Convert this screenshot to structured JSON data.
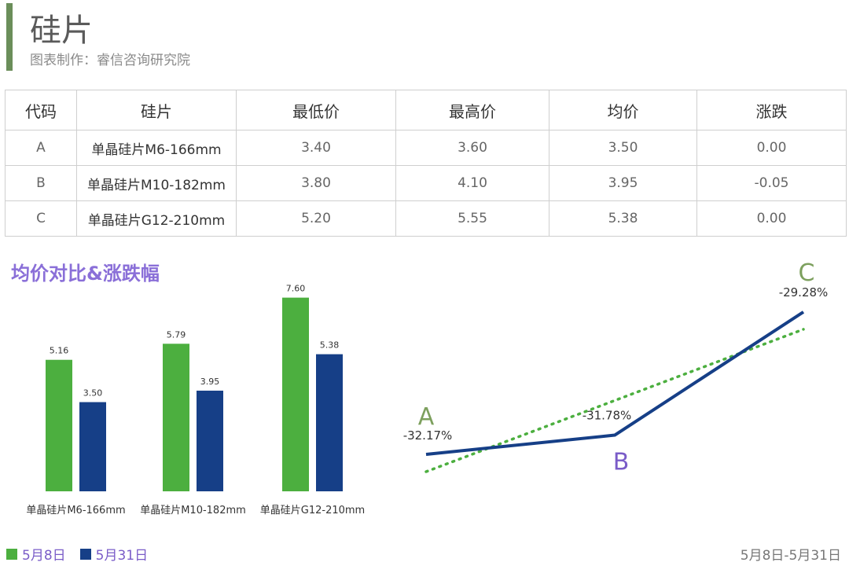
{
  "header": {
    "title": "硅片",
    "subtitle": "图表制作：睿信咨询研究院"
  },
  "table": {
    "headers": [
      "代码",
      "硅片",
      "最低价",
      "最高价",
      "均价",
      "涨跌"
    ],
    "rows": [
      [
        "A",
        "单晶硅片M6-166mm",
        "3.40",
        "3.60",
        "3.50",
        "0.00"
      ],
      [
        "B",
        "单晶硅片M10-182mm",
        "3.80",
        "4.10",
        "3.95",
        "-0.05"
      ],
      [
        "C",
        "单晶硅片G12-210mm",
        "5.20",
        "5.55",
        "5.38",
        "0.00"
      ]
    ]
  },
  "section_title": "均价对比&涨跌幅",
  "colors": {
    "green": "#4caf3f",
    "blue": "#163f87",
    "purple": "#7a5cc8",
    "accent": "#6b8e5a"
  },
  "legend": {
    "items": [
      "5月8日",
      "5月31日"
    ]
  },
  "date_range": "5月8日-5月31日",
  "chart_data": [
    {
      "type": "bar",
      "categories": [
        "单晶硅片M6-166mm",
        "单晶硅片M10-182mm",
        "单晶硅片G12-210mm"
      ],
      "series": [
        {
          "name": "5月8日",
          "values": [
            5.16,
            5.79,
            7.6
          ],
          "labels": [
            "5.16",
            "5.79",
            "7.60"
          ]
        },
        {
          "name": "5月31日",
          "values": [
            3.5,
            3.95,
            5.38
          ],
          "labels": [
            "3.50",
            "3.95",
            "5.38"
          ]
        }
      ],
      "ylim": [
        0,
        8
      ]
    },
    {
      "type": "line",
      "categories": [
        "A",
        "B",
        "C"
      ],
      "values": [
        -32.17,
        -31.78,
        -29.28
      ],
      "labels": [
        "-32.17%",
        "-31.78%",
        "-29.28%"
      ],
      "trendline": true,
      "ylim": [
        -33,
        -28.5
      ]
    }
  ]
}
